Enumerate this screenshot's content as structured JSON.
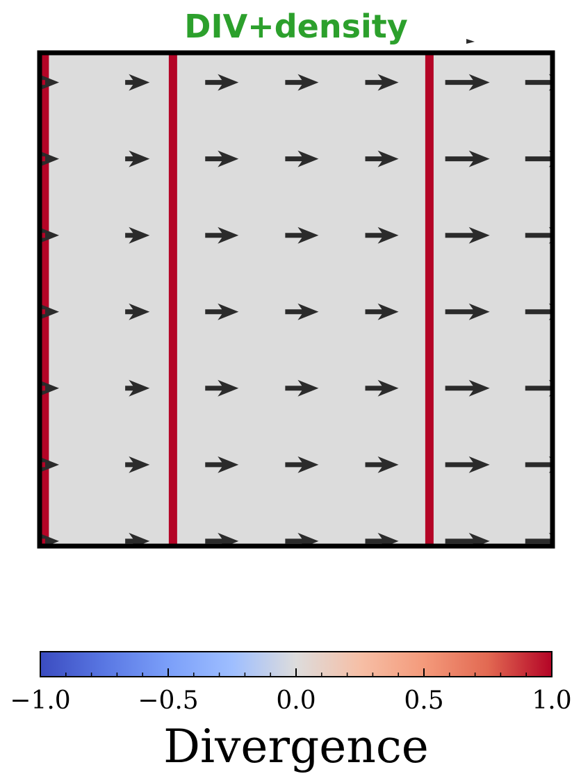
{
  "chart_data": {
    "type": "heatmap",
    "title": "DIV+density",
    "colors": {
      "title": "#2ca02c",
      "field_background": "#dcdcdc",
      "divergence_line": "#b40426",
      "arrow": "#2b2b2b",
      "frame": "#000000"
    },
    "field": {
      "xlim": [
        0,
        1
      ],
      "ylim": [
        0,
        1
      ],
      "arrow_columns_x": [
        0.0,
        0.156,
        0.312,
        0.468,
        0.624,
        0.78,
        0.936
      ],
      "arrow_rows_y": [
        0.94,
        0.785,
        0.63,
        0.475,
        0.32,
        0.165,
        0.01
      ],
      "arrow_u_magnitude": [
        0.3,
        0.55,
        0.75,
        0.75,
        0.75,
        1.0,
        1.0
      ],
      "arrow_v": 0,
      "high_divergence_lines_x": [
        0.01,
        0.26,
        0.76
      ],
      "high_divergence_value": 1.0
    },
    "colorbar": {
      "label": "Divergence",
      "colormap": "coolwarm",
      "range": [
        -1.0,
        1.0
      ],
      "tick_values": [
        -1.0,
        -0.5,
        0.0,
        0.5,
        1.0
      ],
      "tick_labels": [
        "−1.0",
        "−0.5",
        "0.0",
        "0.5",
        "1.0"
      ],
      "minor_tick_step": 0.1,
      "orientation": "horizontal"
    }
  }
}
